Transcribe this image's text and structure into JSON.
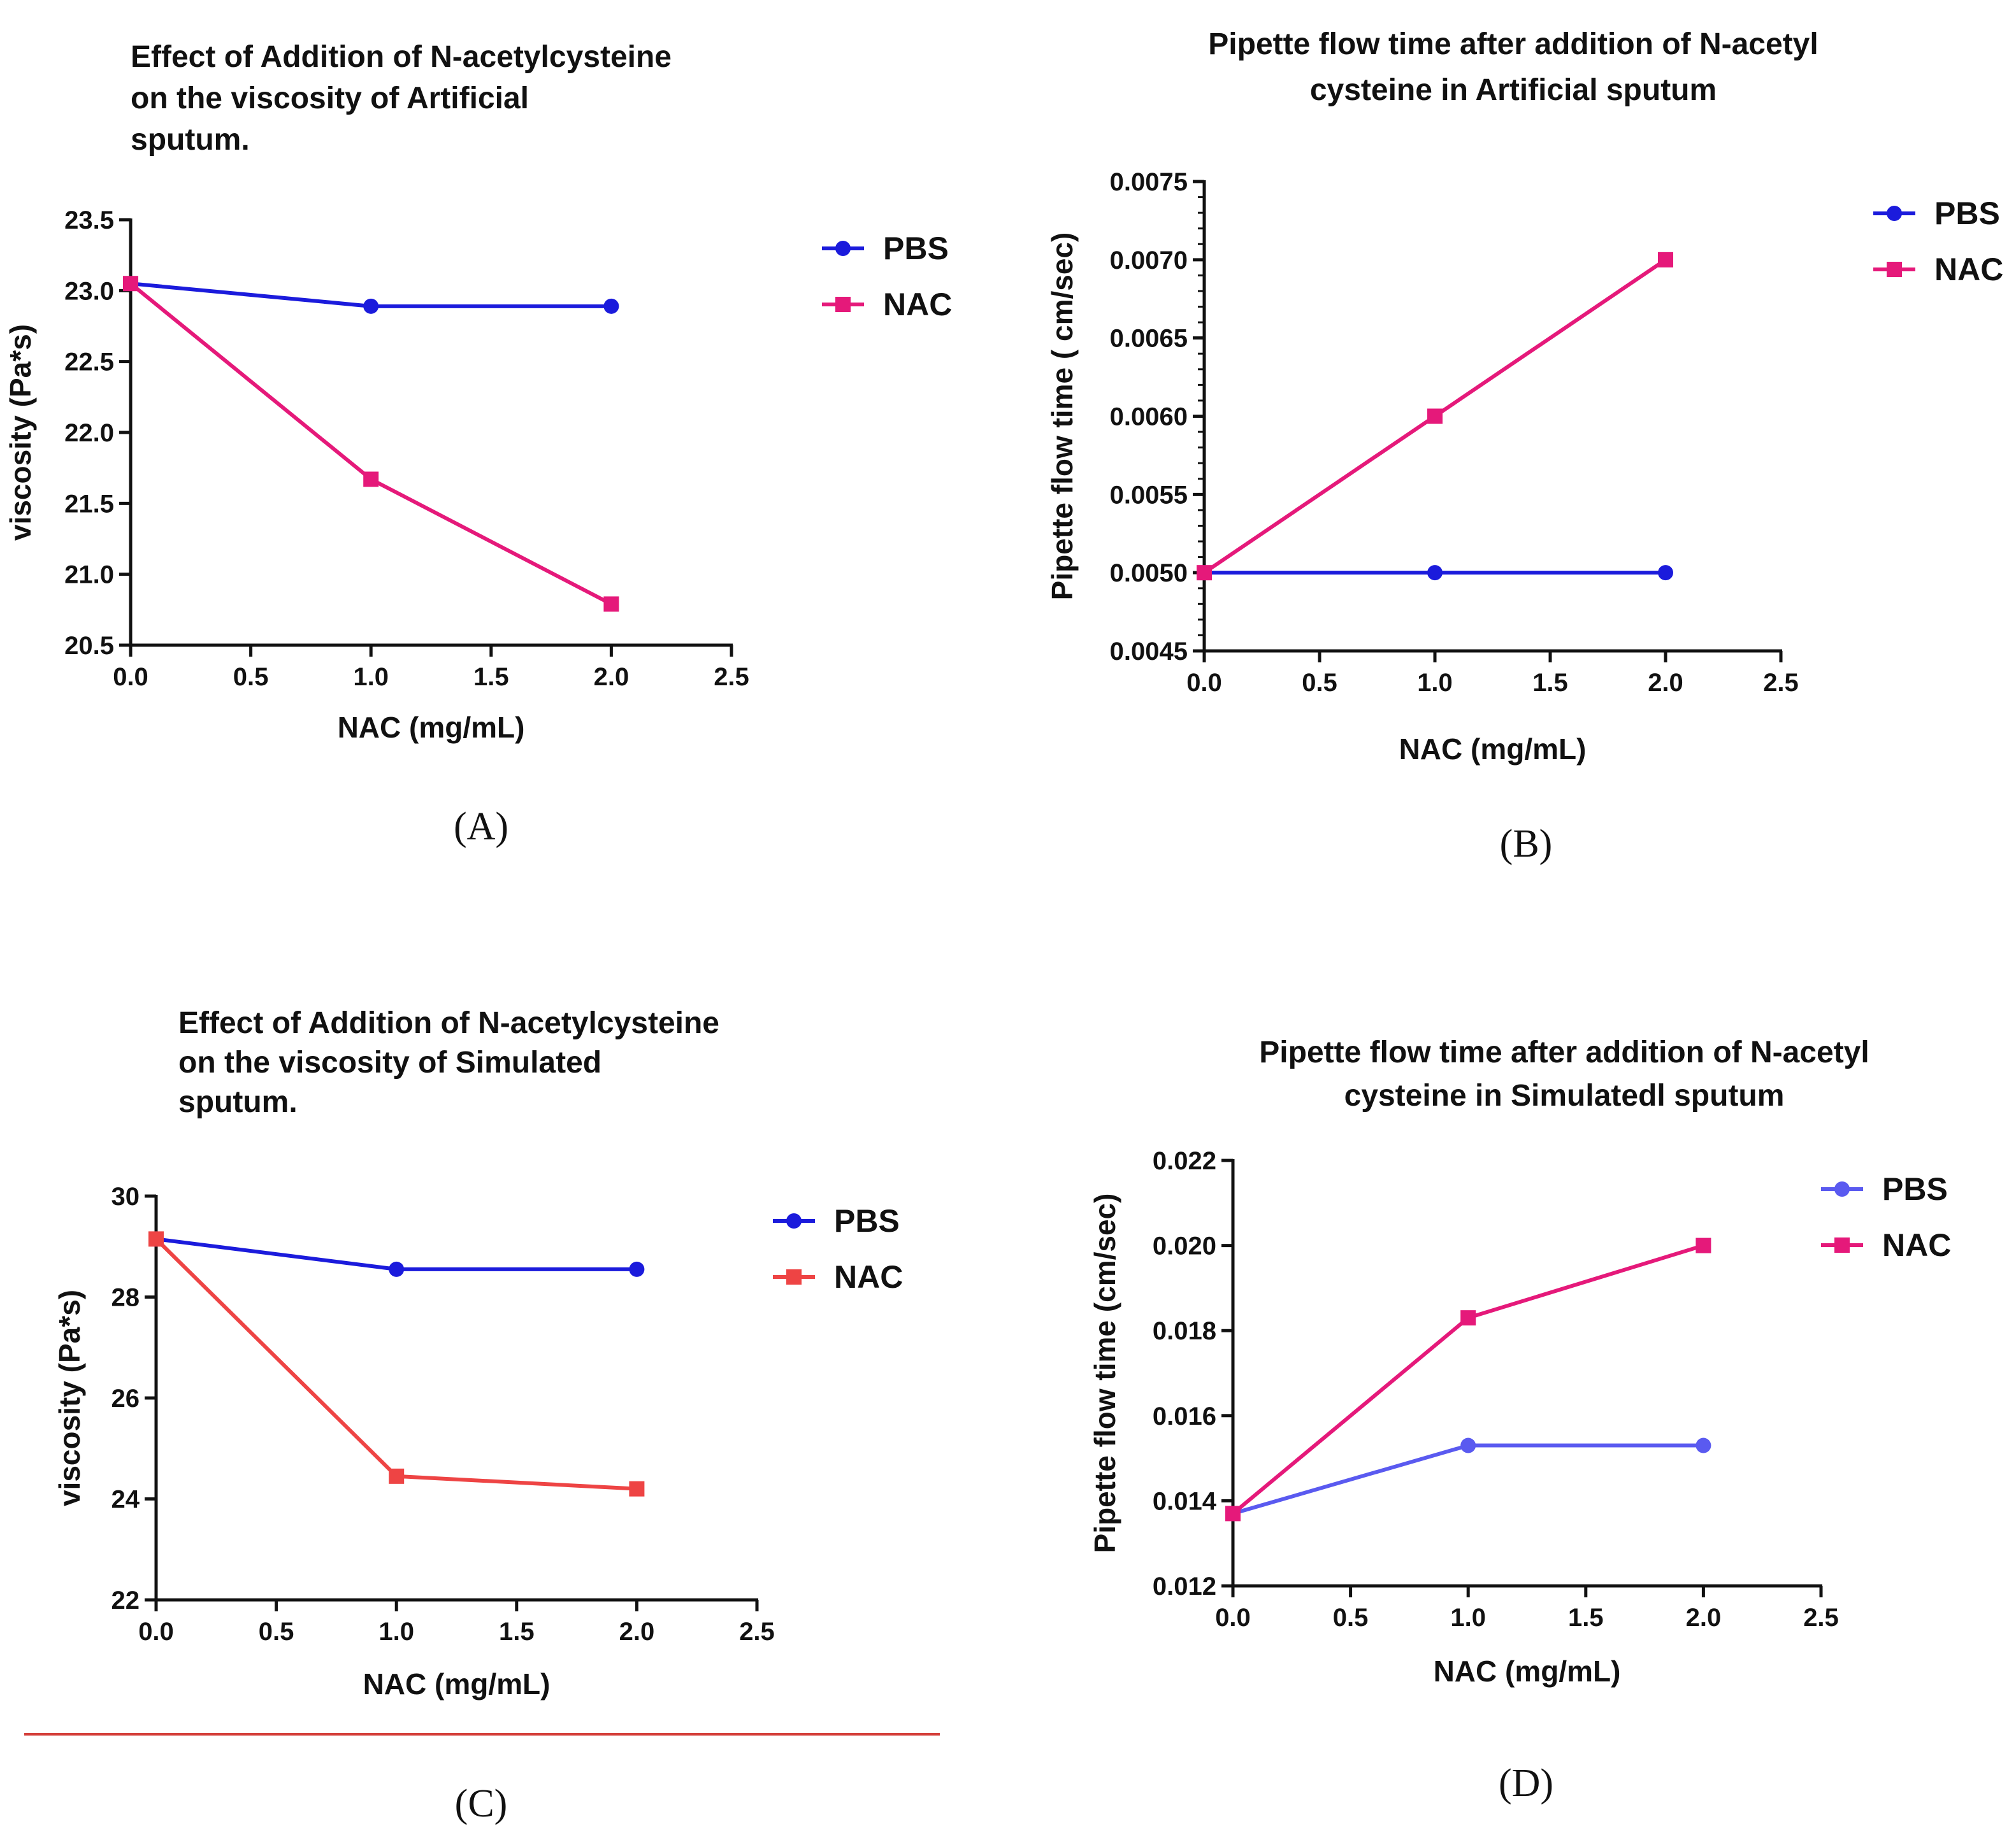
{
  "divider_color": "#d43f3a",
  "chart_data": [
    {
      "panel_label": "(A)",
      "type": "line",
      "title": [
        "Effect of Addition of N-acetylcysteine",
        "on the  viscosity of Artificial",
        "sputum."
      ],
      "xlabel": "NAC (mg/mL)",
      "ylabel": "viscosity (Pa*s)",
      "xlim": [
        0,
        2.5
      ],
      "ylim": [
        20.5,
        23.5
      ],
      "xticks": [
        0,
        0.5,
        1,
        1.5,
        2,
        2.5
      ],
      "xtick_labels": [
        "0.0",
        "0.5",
        "1.0",
        "1.5",
        "2.0",
        "2.5"
      ],
      "yticks": [
        20.5,
        21.0,
        21.5,
        22.0,
        22.5,
        23.0,
        23.5
      ],
      "ytick_labels": [
        "20.5",
        "21.0",
        "21.5",
        "22.0",
        "22.5",
        "23.0",
        "23.5"
      ],
      "minor_ticks_per_interval": 0,
      "series": [
        {
          "name": "PBS",
          "marker": "circle",
          "color": "#1b1bdc",
          "x": [
            0,
            1,
            2
          ],
          "y": [
            23.05,
            22.89,
            22.89
          ]
        },
        {
          "name": "NAC",
          "marker": "square",
          "color": "#e5197a",
          "x": [
            0,
            1,
            2
          ],
          "y": [
            23.05,
            21.67,
            20.79
          ]
        }
      ],
      "legend": "top-right"
    },
    {
      "panel_label": "(B)",
      "type": "line",
      "title": [
        "Pipette flow time after addition of N-acetyl",
        "cysteine in  Artificial sputum"
      ],
      "xlabel": "NAC (mg/mL)",
      "ylabel": "Pipette flow time ( cm/sec)",
      "xlim": [
        0,
        2.5
      ],
      "ylim": [
        0.0045,
        0.0075
      ],
      "xticks": [
        0,
        0.5,
        1,
        1.5,
        2,
        2.5
      ],
      "xtick_labels": [
        "0.0",
        "0.5",
        "1.0",
        "1.5",
        "2.0",
        "2.5"
      ],
      "yticks": [
        0.0045,
        0.005,
        0.0055,
        0.006,
        0.0065,
        0.007,
        0.0075
      ],
      "ytick_labels": [
        "0.0045",
        "0.0050",
        "0.0055",
        "0.0060",
        "0.0065",
        "0.0070",
        "0.0075"
      ],
      "minor_ticks_per_interval": 4,
      "series": [
        {
          "name": "PBS",
          "marker": "circle",
          "color": "#1b1bdc",
          "x": [
            0,
            1,
            2
          ],
          "y": [
            0.005,
            0.005,
            0.005
          ]
        },
        {
          "name": "NAC",
          "marker": "square",
          "color": "#e5197a",
          "x": [
            0,
            1,
            2
          ],
          "y": [
            0.005,
            0.006,
            0.007
          ]
        }
      ],
      "legend": "top-right"
    },
    {
      "panel_label": "(C)",
      "type": "line",
      "title": [
        "Effect of Addition of N-acetylcysteine",
        "on the  viscosity of Simulated",
        "sputum."
      ],
      "xlabel": "NAC (mg/mL)",
      "ylabel": "viscosity (Pa*s)",
      "xlim": [
        0,
        2.5
      ],
      "ylim": [
        22,
        30
      ],
      "xticks": [
        0,
        0.5,
        1,
        1.5,
        2,
        2.5
      ],
      "xtick_labels": [
        "0.0",
        "0.5",
        "1.0",
        "1.5",
        "2.0",
        "2.5"
      ],
      "yticks": [
        22,
        24,
        26,
        28,
        30
      ],
      "ytick_labels": [
        "22",
        "24",
        "26",
        "28",
        "30"
      ],
      "minor_ticks_per_interval": 0,
      "series": [
        {
          "name": "PBS",
          "marker": "circle",
          "color": "#1b1bdc",
          "x": [
            0,
            1,
            2
          ],
          "y": [
            29.15,
            28.55,
            28.55
          ]
        },
        {
          "name": "NAC",
          "marker": "square",
          "color": "#ee4444",
          "x": [
            0,
            1,
            2
          ],
          "y": [
            29.15,
            24.45,
            24.2
          ]
        }
      ],
      "legend": "top-right"
    },
    {
      "panel_label": "(D)",
      "type": "line",
      "title": [
        "Pipette flow time after addition of N-acetyl",
        "cysteine in  Simulatedl sputum"
      ],
      "xlabel": "NAC (mg/mL)",
      "ylabel": "Pipette flow time (cm/sec)",
      "xlim": [
        0,
        2.5
      ],
      "ylim": [
        0.012,
        0.022
      ],
      "xticks": [
        0,
        0.5,
        1,
        1.5,
        2,
        2.5
      ],
      "xtick_labels": [
        "0.0",
        "0.5",
        "1.0",
        "1.5",
        "2.0",
        "2.5"
      ],
      "yticks": [
        0.012,
        0.014,
        0.016,
        0.018,
        0.02,
        0.022
      ],
      "ytick_labels": [
        "0.012",
        "0.014",
        "0.016",
        "0.018",
        "0.020",
        "0.022"
      ],
      "minor_ticks_per_interval": 0,
      "series": [
        {
          "name": "PBS",
          "marker": "circle",
          "color": "#5a5af0",
          "x": [
            0,
            1,
            2
          ],
          "y": [
            0.0137,
            0.0153,
            0.0153
          ]
        },
        {
          "name": "NAC",
          "marker": "square",
          "color": "#e5197a",
          "x": [
            0,
            1,
            2
          ],
          "y": [
            0.0137,
            0.0183,
            0.02
          ]
        }
      ],
      "legend": "top-right"
    }
  ]
}
